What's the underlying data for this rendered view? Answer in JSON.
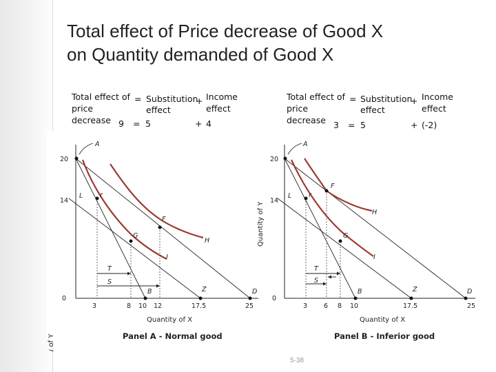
{
  "slide": {
    "title_line1": "Total effect of Price decrease of Good X",
    "title_line2": "on Quantity demanded of Good X",
    "page_number": "5-38"
  },
  "panel_a": {
    "eq_total": "Total effect of",
    "eq_price": "price",
    "eq_decrease": "decrease",
    "eq_eq1": "=",
    "eq_subst": "Substitution",
    "eq_effect1": "effect",
    "eq_plus1": "+",
    "eq_income": "Income",
    "eq_effect2": "effect",
    "val_total": "9",
    "val_eq": "=",
    "val_subst": "5",
    "val_plus": "+",
    "val_income": "4",
    "caption": "Panel A - Normal good",
    "y_axis_label": "Quantity of Y",
    "x_axis_label": "Quantity of X",
    "y_ticks": [
      "20",
      "14",
      "0"
    ],
    "x_ticks": [
      "3",
      "8",
      "10",
      "12",
      "17.5",
      "25"
    ],
    "point_labels": [
      "A",
      "L",
      "F",
      "G",
      "I",
      "H",
      "Z",
      "B",
      "D",
      "T",
      "S"
    ]
  },
  "panel_b": {
    "eq_total": "Total effect of",
    "eq_price": "price",
    "eq_decrease": "decrease",
    "eq_eq1": "=",
    "eq_subst": "Substitution",
    "eq_effect1": "effect",
    "eq_plus1": "+",
    "eq_income": "Income",
    "eq_effect2": "effect",
    "val_total": "3",
    "val_eq": "=",
    "val_subst": "5",
    "val_plus": "+",
    "val_income": "(-2)",
    "caption": "Panel B - Inferior good",
    "y_axis_label": "Quantity of Y",
    "x_axis_label": "Quantity of X",
    "y_ticks": [
      "20",
      "14",
      "0"
    ],
    "x_ticks": [
      "3",
      "6",
      "8",
      "10",
      "17.5",
      "25"
    ],
    "point_labels": [
      "A",
      "L",
      "F",
      "G",
      "I",
      "H",
      "Z",
      "B",
      "D",
      "T",
      "S"
    ]
  },
  "colors": {
    "curve": "#9b3a33",
    "axis": "#222222",
    "page_number": "#999999"
  }
}
